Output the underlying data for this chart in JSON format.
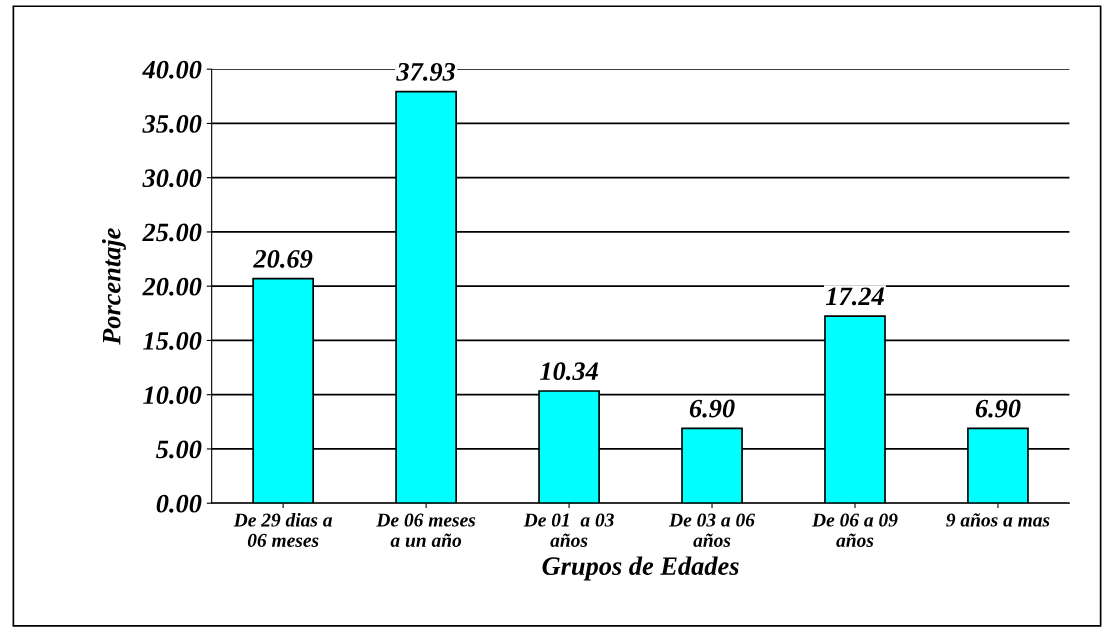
{
  "chart_data": {
    "type": "bar",
    "xlabel": "Grupos de Edades",
    "ylabel": "Porcentaje",
    "categories": [
      "De 29 dias a\n06 meses",
      "De 06 meses\na un año",
      "De 01  a 03\naños",
      "De 03 a 06\naños",
      "De 06 a 09\naños",
      "9 años a mas"
    ],
    "values": [
      20.69,
      37.93,
      10.34,
      6.9,
      17.24,
      6.9
    ],
    "value_labels": [
      "20.69",
      "37.93",
      "10.34",
      "6.90",
      "17.24",
      "6.90"
    ],
    "color": "#00ffff",
    "ylim": [
      0,
      40
    ],
    "yticks": [
      {
        "value": 0,
        "label": "0.00"
      },
      {
        "value": 5,
        "label": "5.00"
      },
      {
        "value": 10,
        "label": "10.00"
      },
      {
        "value": 15,
        "label": "15.00"
      },
      {
        "value": 20,
        "label": "20.00"
      },
      {
        "value": 25,
        "label": "25.00"
      },
      {
        "value": 30,
        "label": "30.00"
      },
      {
        "value": 35,
        "label": "35.00"
      },
      {
        "value": 40,
        "label": "40.00"
      }
    ],
    "grid": "y",
    "legend": false
  }
}
